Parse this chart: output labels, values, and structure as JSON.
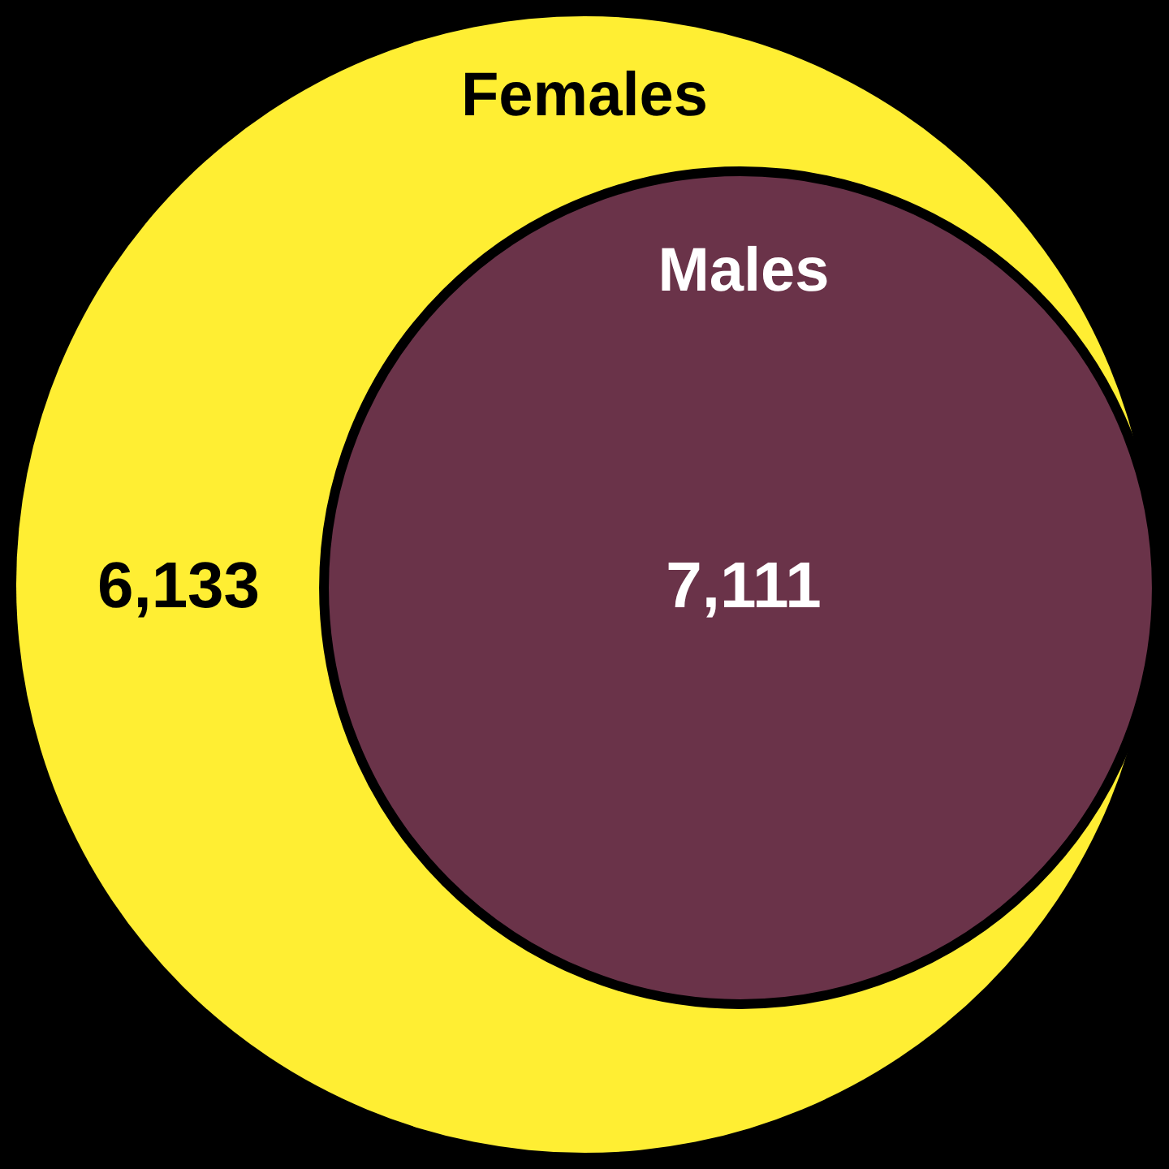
{
  "chart_data": {
    "type": "other",
    "categories": [
      "Females",
      "Males"
    ],
    "values": [
      6133,
      7111
    ],
    "value_labels": [
      "6,133",
      "7,111"
    ],
    "colors": [
      "#ffee33",
      "#6a3349"
    ]
  }
}
